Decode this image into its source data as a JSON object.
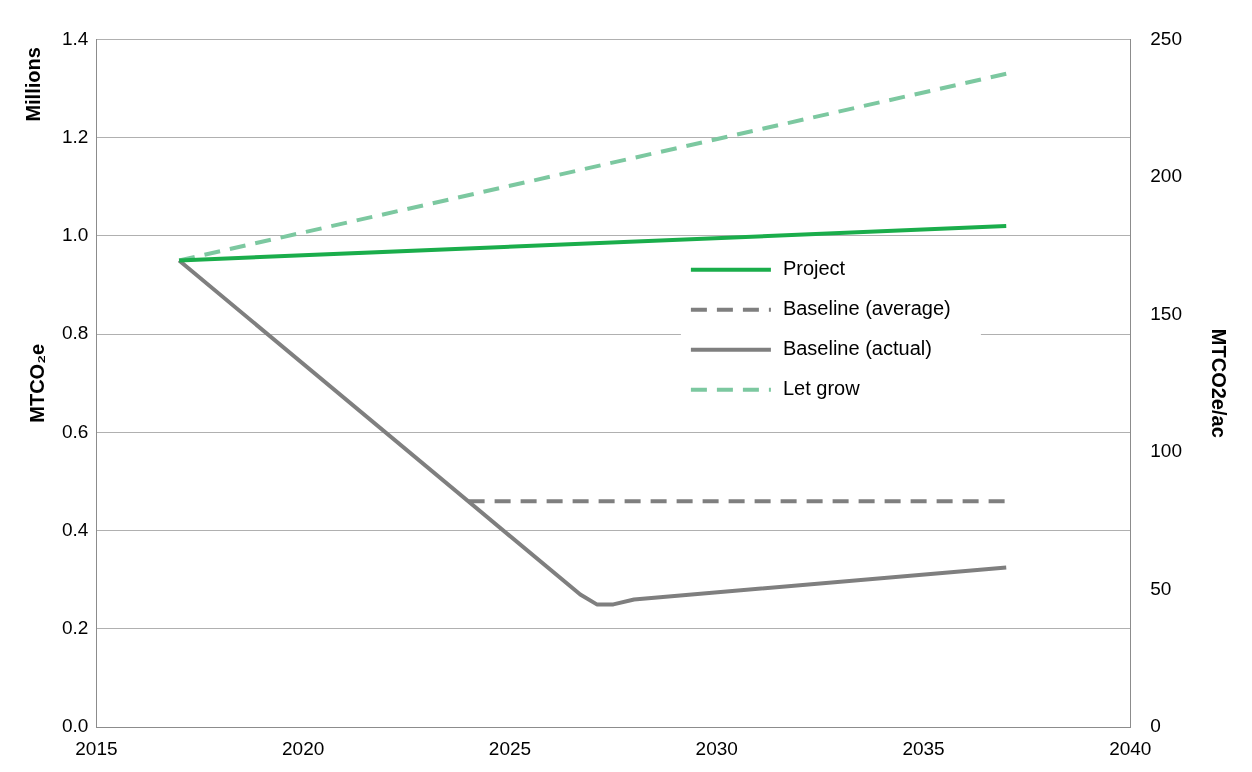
{
  "chart_data": {
    "type": "line",
    "ylabel": "MTCO₂e",
    "y2label": "MTCO2e/ac",
    "annotations": [
      "Millions"
    ],
    "xlim": [
      2015,
      2040
    ],
    "xticks": [
      2015,
      2020,
      2025,
      2030,
      2035,
      2040
    ],
    "ylim": [
      0,
      1.4
    ],
    "yticks": [
      {
        "value": 0,
        "label": "0.0"
      },
      0.2,
      0.4,
      0.6,
      0.8,
      {
        "value": 1,
        "label": "1.0"
      },
      1.2,
      1.4
    ],
    "y2lim": [
      0,
      250
    ],
    "y2ticks": [
      0,
      50,
      100,
      150,
      200,
      250
    ],
    "grid": "y",
    "legend": "right",
    "marker": "none",
    "series": [
      {
        "name": "Project",
        "color": "#1aad4b",
        "line_style": "solid",
        "x": [
          2017,
          2037
        ],
        "values": [
          0.95,
          1.02
        ]
      },
      {
        "name": "Baseline (average)",
        "color": "#7f7f7f",
        "line_style": "dashed",
        "x": [
          2024,
          2037
        ],
        "values": [
          0.46,
          0.46
        ]
      },
      {
        "name": "Baseline (actual)",
        "color": "#7f7f7f",
        "line_style": "solid",
        "x": [
          2017,
          2026.7,
          2027.1,
          2027.5,
          2028,
          2037
        ],
        "values": [
          0.95,
          0.27,
          0.25,
          0.25,
          0.26,
          0.325
        ]
      },
      {
        "name": "Let grow",
        "color": "#7cc8a0",
        "line_style": "dashed",
        "x": [
          2017,
          2037
        ],
        "values": [
          0.95,
          1.33
        ]
      }
    ]
  }
}
